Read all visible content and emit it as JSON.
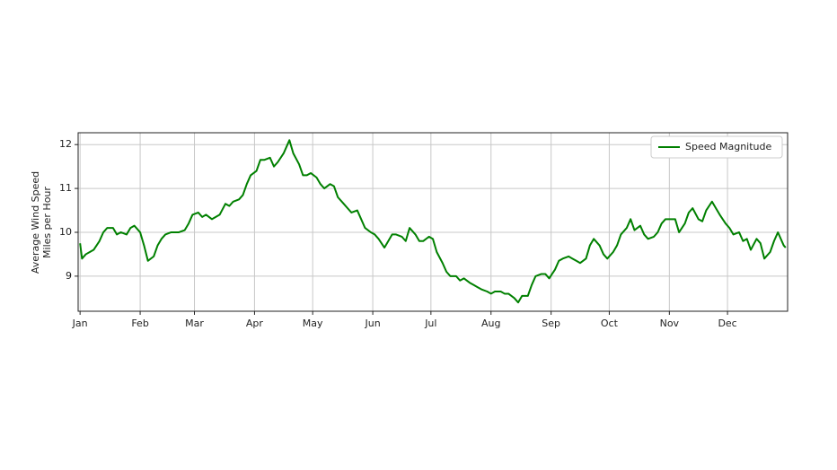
{
  "chart_data": {
    "type": "line",
    "y_label": [
      "Average Wind Speed",
      "Miles per Hour"
    ],
    "x": [
      1,
      2,
      4,
      6,
      8,
      11,
      13,
      15,
      18,
      20,
      22,
      25,
      27,
      29,
      32,
      34,
      36,
      39,
      41,
      43,
      45,
      48,
      50,
      52,
      55,
      57,
      59,
      62,
      64,
      66,
      69,
      71,
      73,
      76,
      78,
      80,
      83,
      85,
      87,
      89,
      92,
      94,
      96,
      99,
      101,
      103,
      106,
      108,
      109,
      111,
      114,
      116,
      118,
      120,
      123,
      125,
      127,
      130,
      132,
      134,
      137,
      139,
      141,
      144,
      146,
      148,
      151,
      153,
      155,
      158,
      160,
      162,
      164,
      167,
      169,
      171,
      174,
      176,
      178,
      181,
      183,
      185,
      188,
      190,
      192,
      195,
      197,
      199,
      202,
      204,
      206,
      208,
      211,
      213,
      215,
      218,
      220,
      222,
      225,
      227,
      229,
      232,
      234,
      236,
      239,
      241,
      243,
      246,
      248,
      250,
      253,
      255,
      257,
      259,
      262,
      264,
      266,
      269,
      271,
      273,
      276,
      278,
      280,
      283,
      285,
      287,
      290,
      292,
      294,
      297,
      299,
      301,
      303,
      306,
      308,
      310,
      313,
      315,
      317,
      320,
      322,
      324,
      327,
      329,
      331,
      334,
      336,
      338,
      341,
      343,
      345,
      347,
      350,
      352,
      354,
      357,
      359,
      361,
      364,
      365
    ],
    "series": [
      {
        "name": "Speed Magnitude",
        "color": "#008000",
        "values": [
          9.75,
          9.4,
          9.5,
          9.55,
          9.6,
          9.8,
          10.0,
          10.1,
          10.1,
          9.95,
          10.0,
          9.95,
          10.1,
          10.15,
          10.0,
          9.7,
          9.35,
          9.45,
          9.7,
          9.85,
          9.95,
          10.0,
          10.0,
          10.0,
          10.05,
          10.2,
          10.4,
          10.45,
          10.35,
          10.4,
          10.3,
          10.35,
          10.4,
          10.65,
          10.6,
          10.7,
          10.75,
          10.85,
          11.1,
          11.3,
          11.4,
          11.65,
          11.65,
          11.7,
          11.5,
          11.6,
          11.8,
          12.0,
          12.1,
          11.8,
          11.55,
          11.3,
          11.3,
          11.35,
          11.25,
          11.1,
          11.0,
          11.1,
          11.05,
          10.8,
          10.65,
          10.55,
          10.45,
          10.5,
          10.3,
          10.1,
          10.0,
          9.95,
          9.85,
          9.65,
          9.8,
          9.95,
          9.95,
          9.9,
          9.8,
          10.1,
          9.95,
          9.8,
          9.8,
          9.9,
          9.85,
          9.55,
          9.3,
          9.1,
          9.0,
          9.0,
          8.9,
          8.95,
          8.85,
          8.8,
          8.75,
          8.7,
          8.65,
          8.6,
          8.65,
          8.65,
          8.6,
          8.6,
          8.5,
          8.4,
          8.55,
          8.55,
          8.8,
          9.0,
          9.05,
          9.05,
          8.95,
          9.15,
          9.35,
          9.4,
          9.45,
          9.4,
          9.35,
          9.3,
          9.4,
          9.7,
          9.85,
          9.7,
          9.5,
          9.4,
          9.55,
          9.7,
          9.95,
          10.1,
          10.3,
          10.05,
          10.15,
          9.95,
          9.85,
          9.9,
          10.0,
          10.2,
          10.3,
          10.3,
          10.3,
          10.0,
          10.2,
          10.45,
          10.55,
          10.3,
          10.25,
          10.5,
          10.7,
          10.55,
          10.4,
          10.2,
          10.1,
          9.95,
          10.0,
          9.8,
          9.85,
          9.6,
          9.85,
          9.75,
          9.4,
          9.55,
          9.8,
          10.0,
          9.7,
          9.65
        ]
      }
    ],
    "xlim": [
      0,
      366
    ],
    "xticks": [
      {
        "value": 1,
        "label": "Jan"
      },
      {
        "value": 32,
        "label": "Feb"
      },
      {
        "value": 60,
        "label": "Mar"
      },
      {
        "value": 91,
        "label": "Apr"
      },
      {
        "value": 121,
        "label": "May"
      },
      {
        "value": 152,
        "label": "Jun"
      },
      {
        "value": 182,
        "label": "Jul"
      },
      {
        "value": 213,
        "label": "Aug"
      },
      {
        "value": 244,
        "label": "Sep"
      },
      {
        "value": 274,
        "label": "Oct"
      },
      {
        "value": 305,
        "label": "Nov"
      },
      {
        "value": 335,
        "label": "Dec"
      }
    ],
    "ylim": [
      8.2,
      12.27
    ],
    "yticks": [
      9,
      10,
      11,
      12
    ],
    "grid": true,
    "legend": "upper right"
  }
}
